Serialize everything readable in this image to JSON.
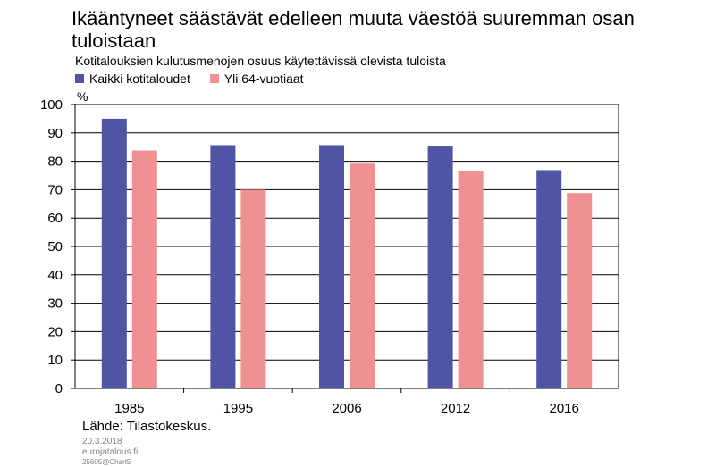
{
  "title": "Ikääntyneet säästävät edelleen muuta väestöä suuremman osan tuloistaan",
  "subtitle": "Kotitalouksien kulutusmenojen osuus käytettävissä olevista tuloista",
  "unit": "%",
  "source": "Lähde: Tilastokeskus.",
  "footer": {
    "date": "20.3.2018",
    "site": "eurojatalous.fi",
    "code": "25605@Chart5"
  },
  "colors": {
    "series1": "#4F54A5",
    "series2": "#F19090",
    "grid": "#000000"
  },
  "chart_data": {
    "type": "bar",
    "categories": [
      "1985",
      "1995",
      "2006",
      "2012",
      "2016"
    ],
    "series": [
      {
        "name": "Kaikki kotitaloudet",
        "values": [
          95,
          85.7,
          85.7,
          85.2,
          76.9
        ]
      },
      {
        "name": "Yli 64-vuotiaat",
        "values": [
          83.8,
          70,
          79.2,
          76.5,
          68.8
        ]
      }
    ],
    "ylim": [
      0,
      100
    ],
    "yticks": [
      "0",
      "10",
      "20",
      "30",
      "40",
      "50",
      "60",
      "70",
      "80",
      "90",
      "100"
    ],
    "grid": true,
    "legend": "top-left"
  }
}
